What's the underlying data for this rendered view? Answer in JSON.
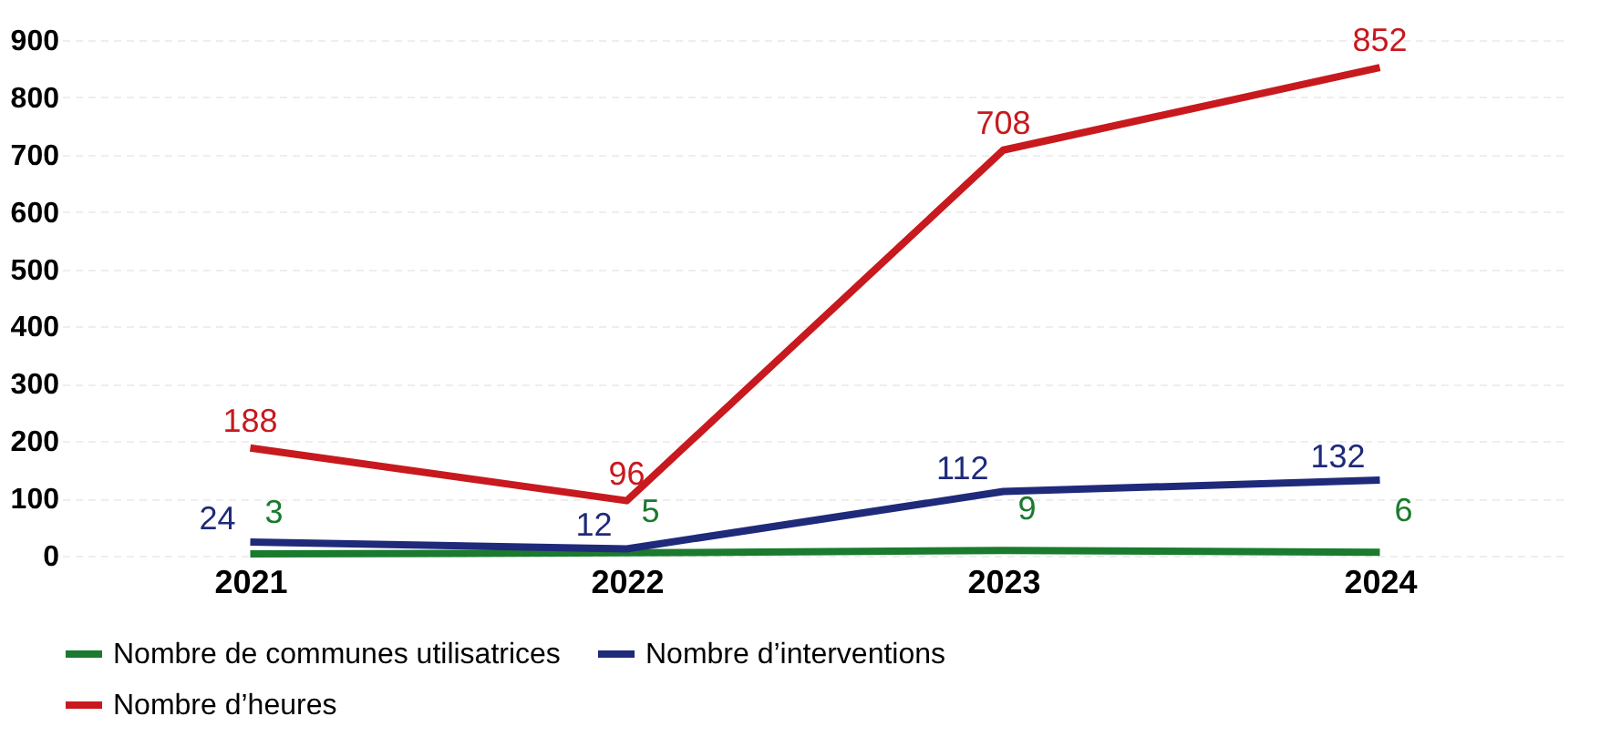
{
  "chart_data": {
    "type": "line",
    "categories": [
      "2021",
      "2022",
      "2023",
      "2024"
    ],
    "series": [
      {
        "name": "Nombre de communes utilisatrices",
        "color": "#1a7a2e",
        "values": [
          3,
          5,
          9,
          6
        ]
      },
      {
        "name": "Nombre d’interventions",
        "color": "#1f2a7a",
        "values": [
          24,
          12,
          112,
          132
        ]
      },
      {
        "name": "Nombre d’heures",
        "color": "#c8191e",
        "values": [
          188,
          96,
          708,
          852
        ]
      }
    ],
    "ylim": [
      0,
      900
    ],
    "yticks": [
      0,
      100,
      200,
      300,
      400,
      500,
      600,
      700,
      800,
      900
    ],
    "data_labels": true,
    "legend": "bottom",
    "grid": "y"
  }
}
